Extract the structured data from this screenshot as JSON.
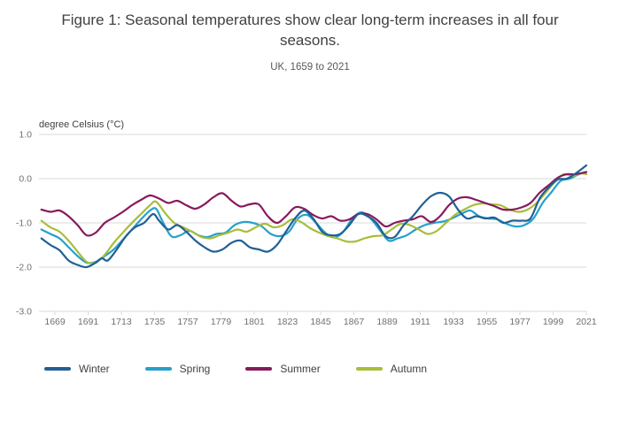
{
  "header": {
    "title": "Figure 1: Seasonal temperatures show clear long-term increases in all four seasons.",
    "subtitle": "UK, 1659 to 2021"
  },
  "chart_data": {
    "type": "line",
    "title": "Figure 1: Seasonal temperatures show clear long-term increases in all four seasons.",
    "subtitle": "UK, 1659 to 2021",
    "ylabel": "degree Celsius (°C)",
    "xlabel": "",
    "xlim": [
      1659,
      2021
    ],
    "ylim": [
      -3.0,
      1.0
    ],
    "yticks": [
      1.0,
      0.0,
      -1.0,
      -2.0,
      -3.0
    ],
    "ytick_labels": [
      "1.0",
      "0.0",
      "-1.0",
      "-2.0",
      "-3.0"
    ],
    "xticks": [
      1669,
      1691,
      1713,
      1735,
      1757,
      1779,
      1801,
      1823,
      1845,
      1867,
      1889,
      1911,
      1933,
      1955,
      1977,
      1999,
      2021
    ],
    "grid": "horizontal",
    "legend_position": "bottom",
    "grid_color": "#d9d9d9",
    "tick_label_color": "#707071",
    "axis_label_color": "#414042",
    "series": [
      {
        "name": "Winter",
        "color": "#206095",
        "points": [
          [
            1660,
            -1.35
          ],
          [
            1666,
            -1.5
          ],
          [
            1672,
            -1.62
          ],
          [
            1678,
            -1.85
          ],
          [
            1684,
            -1.95
          ],
          [
            1690,
            -2.0
          ],
          [
            1696,
            -1.9
          ],
          [
            1700,
            -1.8
          ],
          [
            1704,
            -1.85
          ],
          [
            1710,
            -1.6
          ],
          [
            1716,
            -1.3
          ],
          [
            1722,
            -1.1
          ],
          [
            1728,
            -1.0
          ],
          [
            1734,
            -0.8
          ],
          [
            1738,
            -0.95
          ],
          [
            1744,
            -1.15
          ],
          [
            1750,
            -1.05
          ],
          [
            1756,
            -1.2
          ],
          [
            1762,
            -1.4
          ],
          [
            1768,
            -1.55
          ],
          [
            1774,
            -1.65
          ],
          [
            1780,
            -1.6
          ],
          [
            1786,
            -1.45
          ],
          [
            1792,
            -1.4
          ],
          [
            1798,
            -1.55
          ],
          [
            1804,
            -1.6
          ],
          [
            1810,
            -1.65
          ],
          [
            1816,
            -1.5
          ],
          [
            1822,
            -1.2
          ],
          [
            1828,
            -0.9
          ],
          [
            1834,
            -0.72
          ],
          [
            1840,
            -0.9
          ],
          [
            1846,
            -1.2
          ],
          [
            1852,
            -1.28
          ],
          [
            1858,
            -1.25
          ],
          [
            1864,
            -1.05
          ],
          [
            1870,
            -0.8
          ],
          [
            1876,
            -0.85
          ],
          [
            1882,
            -1.0
          ],
          [
            1888,
            -1.3
          ],
          [
            1894,
            -1.32
          ],
          [
            1900,
            -1.05
          ],
          [
            1906,
            -0.85
          ],
          [
            1912,
            -0.6
          ],
          [
            1918,
            -0.4
          ],
          [
            1924,
            -0.32
          ],
          [
            1930,
            -0.4
          ],
          [
            1936,
            -0.7
          ],
          [
            1942,
            -0.9
          ],
          [
            1948,
            -0.85
          ],
          [
            1954,
            -0.9
          ],
          [
            1960,
            -0.88
          ],
          [
            1966,
            -1.0
          ],
          [
            1972,
            -0.95
          ],
          [
            1978,
            -0.95
          ],
          [
            1984,
            -0.9
          ],
          [
            1990,
            -0.45
          ],
          [
            1996,
            -0.2
          ],
          [
            2002,
            -0.02
          ],
          [
            2008,
            0.0
          ],
          [
            2014,
            0.12
          ],
          [
            2021,
            0.3
          ]
        ]
      },
      {
        "name": "Spring",
        "color": "#27a0cc",
        "points": [
          [
            1660,
            -1.15
          ],
          [
            1666,
            -1.25
          ],
          [
            1672,
            -1.35
          ],
          [
            1678,
            -1.55
          ],
          [
            1684,
            -1.75
          ],
          [
            1690,
            -1.9
          ],
          [
            1696,
            -1.88
          ],
          [
            1702,
            -1.75
          ],
          [
            1708,
            -1.6
          ],
          [
            1714,
            -1.38
          ],
          [
            1720,
            -1.15
          ],
          [
            1726,
            -0.92
          ],
          [
            1732,
            -0.72
          ],
          [
            1736,
            -0.68
          ],
          [
            1740,
            -0.95
          ],
          [
            1746,
            -1.3
          ],
          [
            1752,
            -1.28
          ],
          [
            1758,
            -1.18
          ],
          [
            1764,
            -1.28
          ],
          [
            1770,
            -1.32
          ],
          [
            1776,
            -1.25
          ],
          [
            1782,
            -1.22
          ],
          [
            1788,
            -1.05
          ],
          [
            1794,
            -0.98
          ],
          [
            1800,
            -1.0
          ],
          [
            1806,
            -1.08
          ],
          [
            1812,
            -1.25
          ],
          [
            1818,
            -1.3
          ],
          [
            1824,
            -1.2
          ],
          [
            1830,
            -0.9
          ],
          [
            1836,
            -0.82
          ],
          [
            1842,
            -1.0
          ],
          [
            1848,
            -1.22
          ],
          [
            1854,
            -1.33
          ],
          [
            1860,
            -1.2
          ],
          [
            1866,
            -0.9
          ],
          [
            1872,
            -0.76
          ],
          [
            1878,
            -0.9
          ],
          [
            1884,
            -1.15
          ],
          [
            1890,
            -1.4
          ],
          [
            1896,
            -1.35
          ],
          [
            1902,
            -1.28
          ],
          [
            1908,
            -1.15
          ],
          [
            1914,
            -1.05
          ],
          [
            1920,
            -1.0
          ],
          [
            1926,
            -0.97
          ],
          [
            1932,
            -0.9
          ],
          [
            1938,
            -0.8
          ],
          [
            1944,
            -0.72
          ],
          [
            1950,
            -0.85
          ],
          [
            1956,
            -0.9
          ],
          [
            1962,
            -0.92
          ],
          [
            1968,
            -1.02
          ],
          [
            1974,
            -1.08
          ],
          [
            1980,
            -1.05
          ],
          [
            1986,
            -0.9
          ],
          [
            1992,
            -0.55
          ],
          [
            1998,
            -0.3
          ],
          [
            2004,
            -0.05
          ],
          [
            2010,
            0.0
          ],
          [
            2016,
            0.1
          ],
          [
            2021,
            0.15
          ]
        ]
      },
      {
        "name": "Summer",
        "color": "#871a5b",
        "points": [
          [
            1660,
            -0.7
          ],
          [
            1666,
            -0.75
          ],
          [
            1672,
            -0.72
          ],
          [
            1678,
            -0.85
          ],
          [
            1684,
            -1.05
          ],
          [
            1690,
            -1.28
          ],
          [
            1696,
            -1.22
          ],
          [
            1702,
            -1.0
          ],
          [
            1708,
            -0.88
          ],
          [
            1714,
            -0.75
          ],
          [
            1720,
            -0.6
          ],
          [
            1726,
            -0.48
          ],
          [
            1732,
            -0.38
          ],
          [
            1738,
            -0.45
          ],
          [
            1744,
            -0.55
          ],
          [
            1750,
            -0.5
          ],
          [
            1756,
            -0.6
          ],
          [
            1762,
            -0.68
          ],
          [
            1768,
            -0.58
          ],
          [
            1774,
            -0.42
          ],
          [
            1780,
            -0.33
          ],
          [
            1786,
            -0.5
          ],
          [
            1792,
            -0.63
          ],
          [
            1798,
            -0.58
          ],
          [
            1804,
            -0.58
          ],
          [
            1810,
            -0.85
          ],
          [
            1816,
            -1.0
          ],
          [
            1822,
            -0.85
          ],
          [
            1828,
            -0.65
          ],
          [
            1834,
            -0.68
          ],
          [
            1840,
            -0.82
          ],
          [
            1846,
            -0.9
          ],
          [
            1852,
            -0.85
          ],
          [
            1858,
            -0.95
          ],
          [
            1864,
            -0.92
          ],
          [
            1870,
            -0.8
          ],
          [
            1876,
            -0.8
          ],
          [
            1882,
            -0.92
          ],
          [
            1888,
            -1.08
          ],
          [
            1894,
            -1.0
          ],
          [
            1900,
            -0.95
          ],
          [
            1906,
            -0.92
          ],
          [
            1912,
            -0.85
          ],
          [
            1918,
            -0.98
          ],
          [
            1924,
            -0.85
          ],
          [
            1930,
            -0.6
          ],
          [
            1936,
            -0.45
          ],
          [
            1942,
            -0.42
          ],
          [
            1948,
            -0.48
          ],
          [
            1954,
            -0.55
          ],
          [
            1960,
            -0.62
          ],
          [
            1966,
            -0.7
          ],
          [
            1972,
            -0.7
          ],
          [
            1978,
            -0.65
          ],
          [
            1984,
            -0.55
          ],
          [
            1990,
            -0.32
          ],
          [
            1996,
            -0.15
          ],
          [
            2002,
            0.02
          ],
          [
            2008,
            0.1
          ],
          [
            2014,
            0.1
          ],
          [
            2021,
            0.15
          ]
        ]
      },
      {
        "name": "Autumn",
        "color": "#a8bd3a",
        "points": [
          [
            1660,
            -0.95
          ],
          [
            1666,
            -1.1
          ],
          [
            1672,
            -1.2
          ],
          [
            1678,
            -1.4
          ],
          [
            1684,
            -1.65
          ],
          [
            1690,
            -1.88
          ],
          [
            1696,
            -1.9
          ],
          [
            1702,
            -1.72
          ],
          [
            1708,
            -1.45
          ],
          [
            1714,
            -1.22
          ],
          [
            1720,
            -1.0
          ],
          [
            1726,
            -0.8
          ],
          [
            1732,
            -0.6
          ],
          [
            1736,
            -0.52
          ],
          [
            1742,
            -0.78
          ],
          [
            1748,
            -1.0
          ],
          [
            1754,
            -1.1
          ],
          [
            1760,
            -1.2
          ],
          [
            1766,
            -1.32
          ],
          [
            1772,
            -1.35
          ],
          [
            1778,
            -1.28
          ],
          [
            1784,
            -1.22
          ],
          [
            1790,
            -1.15
          ],
          [
            1796,
            -1.2
          ],
          [
            1802,
            -1.1
          ],
          [
            1808,
            -1.02
          ],
          [
            1814,
            -1.1
          ],
          [
            1820,
            -1.05
          ],
          [
            1826,
            -0.92
          ],
          [
            1832,
            -0.98
          ],
          [
            1838,
            -1.12
          ],
          [
            1844,
            -1.22
          ],
          [
            1850,
            -1.3
          ],
          [
            1856,
            -1.35
          ],
          [
            1862,
            -1.42
          ],
          [
            1868,
            -1.42
          ],
          [
            1874,
            -1.35
          ],
          [
            1880,
            -1.3
          ],
          [
            1886,
            -1.28
          ],
          [
            1892,
            -1.15
          ],
          [
            1898,
            -1.02
          ],
          [
            1904,
            -1.05
          ],
          [
            1910,
            -1.15
          ],
          [
            1916,
            -1.25
          ],
          [
            1922,
            -1.18
          ],
          [
            1928,
            -1.0
          ],
          [
            1934,
            -0.82
          ],
          [
            1940,
            -0.7
          ],
          [
            1946,
            -0.6
          ],
          [
            1952,
            -0.56
          ],
          [
            1958,
            -0.58
          ],
          [
            1964,
            -0.6
          ],
          [
            1970,
            -0.7
          ],
          [
            1976,
            -0.75
          ],
          [
            1982,
            -0.7
          ],
          [
            1988,
            -0.55
          ],
          [
            1994,
            -0.32
          ],
          [
            2000,
            -0.08
          ],
          [
            2006,
            0.1
          ],
          [
            2012,
            0.06
          ],
          [
            2017,
            0.12
          ],
          [
            2021,
            0.1
          ]
        ]
      }
    ]
  }
}
